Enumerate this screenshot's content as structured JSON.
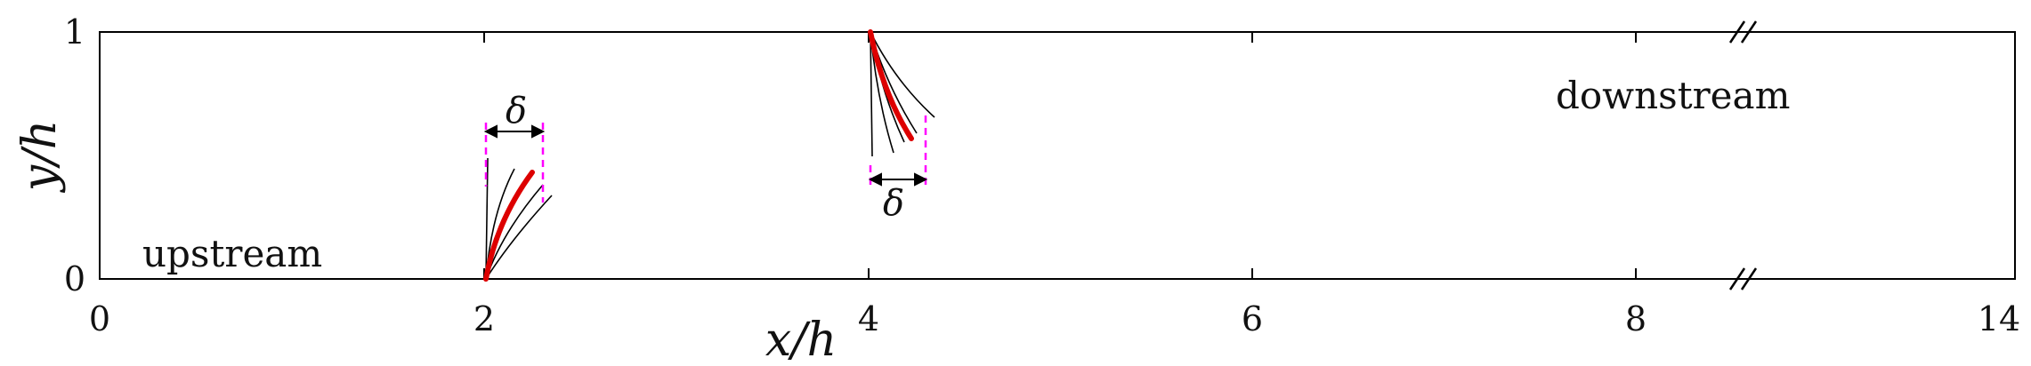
{
  "chart_data": {
    "type": "diagram",
    "xlabel": "x/h",
    "ylabel": "y/h",
    "x_ticks": [
      "0",
      "2",
      "4",
      "6",
      "8",
      "14"
    ],
    "y_ticks": [
      "0",
      "1"
    ],
    "xlim": [
      0,
      10
    ],
    "ylim": [
      0,
      1
    ],
    "axis_break": "between 8 and 14",
    "regions": [
      "upstream",
      "downstream"
    ],
    "deflection_symbol": "δ",
    "plates": [
      {
        "name": "upstream plate",
        "base": [
          2.0,
          0.0
        ],
        "anchored": "bottom"
      },
      {
        "name": "downstream plate",
        "base": [
          4.0,
          1.0
        ],
        "anchored": "top"
      }
    ],
    "colors": {
      "axes": "#000000",
      "deflected_plate": "#dd0000",
      "envelope": "#ff00ff",
      "snapshots": "#000000"
    }
  }
}
